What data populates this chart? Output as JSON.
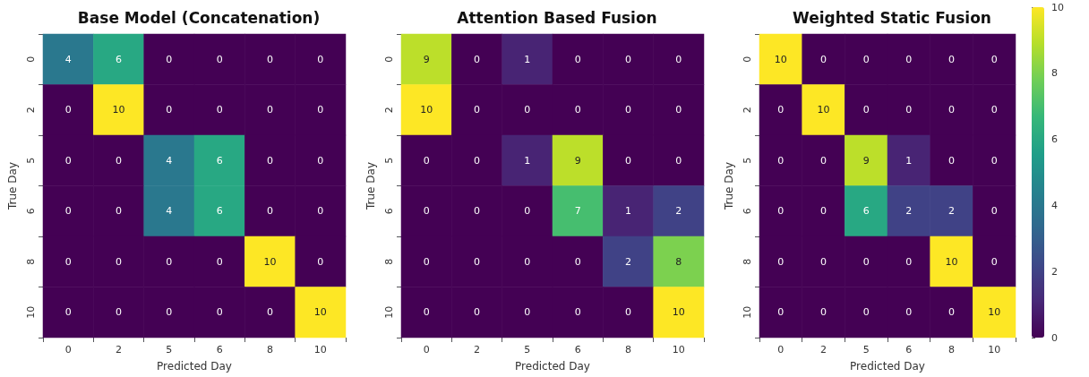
{
  "chart_data": [
    {
      "type": "heatmap",
      "title": "Base Model (Concatenation)",
      "xlabel": "Predicted Day",
      "ylabel": "True Day",
      "categories": [
        "0",
        "2",
        "5",
        "6",
        "8",
        "10"
      ],
      "y_categories": [
        "0",
        "2",
        "5",
        "6",
        "8",
        "10"
      ],
      "data_labels": true,
      "cells": [
        [
          4,
          6,
          0,
          0,
          0,
          0
        ],
        [
          0,
          10,
          0,
          0,
          0,
          0
        ],
        [
          0,
          0,
          4,
          6,
          0,
          0
        ],
        [
          0,
          0,
          4,
          6,
          0,
          0
        ],
        [
          0,
          0,
          0,
          0,
          10,
          0
        ],
        [
          0,
          0,
          0,
          0,
          0,
          10
        ]
      ]
    },
    {
      "type": "heatmap",
      "title": "Attention Based Fusion",
      "xlabel": "Predicted Day",
      "ylabel": "True Day",
      "categories": [
        "0",
        "2",
        "5",
        "6",
        "8",
        "10"
      ],
      "y_categories": [
        "0",
        "2",
        "5",
        "6",
        "8",
        "10"
      ],
      "data_labels": true,
      "cells": [
        [
          9,
          0,
          1,
          0,
          0,
          0
        ],
        [
          10,
          0,
          0,
          0,
          0,
          0
        ],
        [
          0,
          0,
          1,
          9,
          0,
          0
        ],
        [
          0,
          0,
          0,
          7,
          1,
          2
        ],
        [
          0,
          0,
          0,
          0,
          2,
          8
        ],
        [
          0,
          0,
          0,
          0,
          0,
          10
        ]
      ]
    },
    {
      "type": "heatmap",
      "title": "Weighted Static Fusion",
      "xlabel": "Predicted Day",
      "ylabel": "True Day",
      "categories": [
        "0",
        "2",
        "5",
        "6",
        "8",
        "10"
      ],
      "y_categories": [
        "0",
        "2",
        "5",
        "6",
        "8",
        "10"
      ],
      "clim": [
        0,
        10
      ],
      "cticks": [
        0,
        2,
        4,
        6,
        8,
        10
      ],
      "data_labels": true,
      "cells": [
        [
          10,
          0,
          0,
          0,
          0,
          0
        ],
        [
          0,
          10,
          0,
          0,
          0,
          0
        ],
        [
          0,
          0,
          9,
          1,
          0,
          0
        ],
        [
          0,
          0,
          6,
          2,
          2,
          0
        ],
        [
          0,
          0,
          0,
          0,
          10,
          0
        ],
        [
          0,
          0,
          0,
          0,
          0,
          10
        ]
      ]
    }
  ]
}
